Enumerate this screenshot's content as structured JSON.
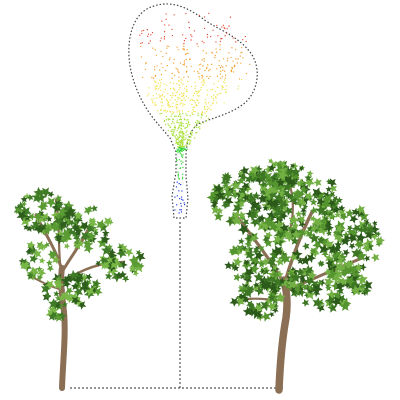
{
  "scene": {
    "background": "#ffffff",
    "point_cloud": {
      "outline_color": "#444444",
      "gradient": [
        "#e8402a",
        "#f4a02c",
        "#f1e24a",
        "#a8e03a",
        "#35d33a",
        "#2a3fe0"
      ]
    },
    "connector_color": "#555555",
    "trees": [
      {
        "id": "left",
        "trunk_color": "#8a6f55",
        "leaf_colors": [
          "#2e5e1c",
          "#3f7a26",
          "#5a9b34",
          "#78b646"
        ]
      },
      {
        "id": "right",
        "trunk_color": "#8a6f55",
        "leaf_colors": [
          "#2c5a1a",
          "#3d7724",
          "#55952f",
          "#73b043"
        ]
      }
    ]
  }
}
